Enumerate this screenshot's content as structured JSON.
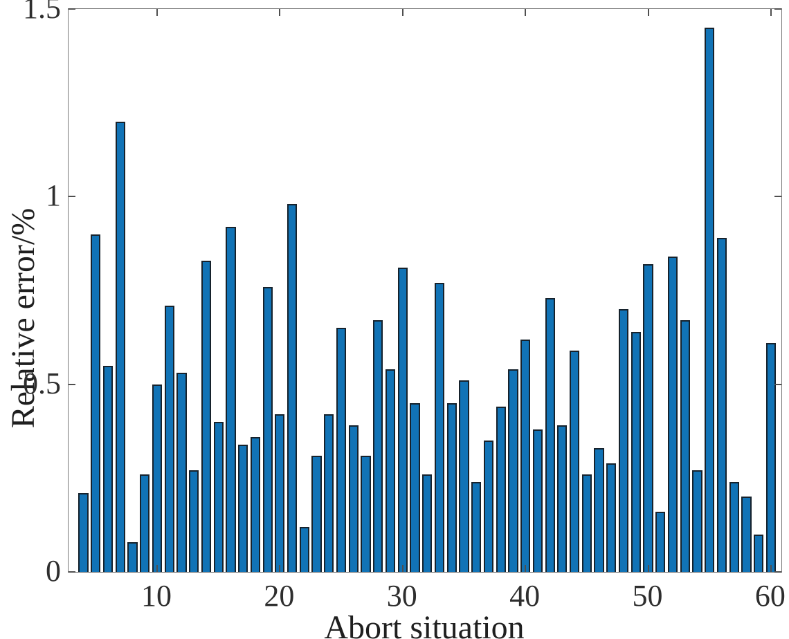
{
  "chart_data": {
    "type": "bar",
    "title": "",
    "xlabel": "Abort situation",
    "ylabel": "Relative error/%",
    "x": [
      4,
      5,
      6,
      7,
      8,
      9,
      10,
      11,
      12,
      13,
      14,
      15,
      16,
      17,
      18,
      19,
      20,
      21,
      22,
      23,
      24,
      25,
      26,
      27,
      28,
      29,
      30,
      31,
      32,
      33,
      34,
      35,
      36,
      37,
      38,
      39,
      40,
      41,
      42,
      43,
      44,
      45,
      46,
      47,
      48,
      49,
      50,
      51,
      52,
      53,
      54,
      55,
      56,
      57,
      58,
      59,
      60
    ],
    "values": [
      0.21,
      0.9,
      0.55,
      1.2,
      0.08,
      0.26,
      0.5,
      0.71,
      0.53,
      0.27,
      0.83,
      0.4,
      0.92,
      0.34,
      0.36,
      0.76,
      0.42,
      0.98,
      0.12,
      0.31,
      0.42,
      0.65,
      0.39,
      0.31,
      0.67,
      0.54,
      0.81,
      0.45,
      0.26,
      0.77,
      0.45,
      0.51,
      0.24,
      0.35,
      0.44,
      0.54,
      0.62,
      0.38,
      0.73,
      0.39,
      0.59,
      0.26,
      0.33,
      0.29,
      0.7,
      0.64,
      0.82,
      0.16,
      0.84,
      0.67,
      0.27,
      1.45,
      0.89,
      0.24,
      0.2,
      0.1,
      0.61
    ],
    "bar_width": 0.8,
    "xticks": [
      10,
      20,
      30,
      40,
      50,
      60
    ],
    "xtick_labels": [
      "10",
      "20",
      "30",
      "40",
      "50",
      "60"
    ],
    "yticks": [
      0,
      0.5,
      1,
      1.5
    ],
    "ytick_labels": [
      "0",
      "0.5",
      "1",
      "1.5"
    ],
    "xlim": [
      2.785,
      60.85
    ],
    "ylim": [
      0,
      1.5
    ],
    "grid": false,
    "legend": null,
    "bar_color": "#1173b6",
    "bar_edge_color": "#16222c",
    "axis_box_color": "#767676",
    "tick_color": "#4f4f4f",
    "tick_label_color": "#2e2e2e",
    "axis_label_color": "#1f1f1f"
  }
}
